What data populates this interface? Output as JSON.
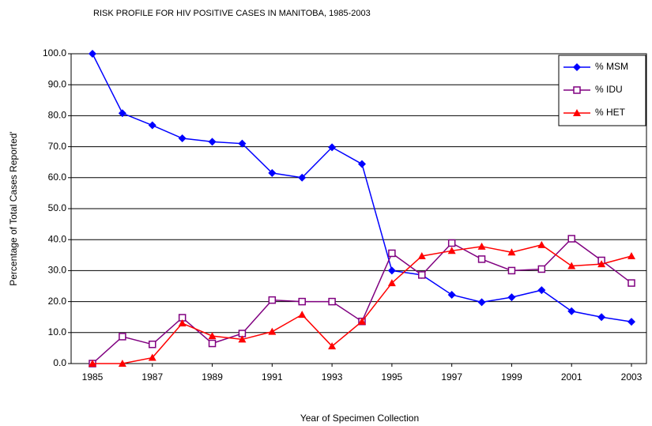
{
  "chart_data": {
    "type": "line",
    "title": "RISK PROFILE FOR HIV POSITIVE CASES IN MANITOBA, 1985-2003",
    "xlabel": "Year of Specimen Collection",
    "ylabel": "Percentage of Total Cases Reported'",
    "x": [
      1985,
      1986,
      1987,
      1988,
      1989,
      1990,
      1991,
      1992,
      1993,
      1994,
      1995,
      1996,
      1997,
      1998,
      1999,
      2000,
      2001,
      2002,
      2003
    ],
    "xlim": [
      1985,
      2003
    ],
    "xticks": [
      1985,
      1987,
      1989,
      1991,
      1993,
      1995,
      1997,
      1999,
      2001,
      2003
    ],
    "ylim": [
      0,
      100
    ],
    "yticks": [
      {
        "value": 0,
        "label": "0.0"
      },
      {
        "value": 10,
        "label": "10.0"
      },
      {
        "value": 20,
        "label": "20.0"
      },
      {
        "value": 30,
        "label": "30.0"
      },
      {
        "value": 40,
        "label": "40.0"
      },
      {
        "value": 50,
        "label": "50.0"
      },
      {
        "value": 60,
        "label": "60.0"
      },
      {
        "value": 70,
        "label": "70.0"
      },
      {
        "value": 80,
        "label": "80.0"
      },
      {
        "value": 90,
        "label": "90.0"
      },
      {
        "value": 100,
        "label": "100.0"
      }
    ],
    "grid": true,
    "legend": "upper right",
    "series": [
      {
        "name": "% MSM",
        "color": "#0000ff",
        "marker": "diamond",
        "values": [
          100,
          80.8,
          76.9,
          72.7,
          71.6,
          71.0,
          61.5,
          60.0,
          69.8,
          64.4,
          30.0,
          28.6,
          22.2,
          19.8,
          21.4,
          23.7,
          16.9,
          15.0,
          13.5
        ]
      },
      {
        "name": "% IDU",
        "color": "#800080",
        "marker": "square",
        "values": [
          0,
          8.7,
          6.2,
          14.8,
          6.5,
          9.7,
          20.5,
          20.0,
          20.0,
          13.6,
          35.6,
          28.6,
          38.9,
          33.7,
          30.0,
          30.5,
          40.3,
          33.3,
          26.0
        ]
      },
      {
        "name": "% HET",
        "color": "#ff0000",
        "marker": "triangle",
        "values": [
          0,
          0,
          1.9,
          13.0,
          8.9,
          7.8,
          10.3,
          15.8,
          5.6,
          13.6,
          26.0,
          34.7,
          36.4,
          37.8,
          35.9,
          38.3,
          31.5,
          32.1,
          34.7
        ]
      }
    ]
  }
}
